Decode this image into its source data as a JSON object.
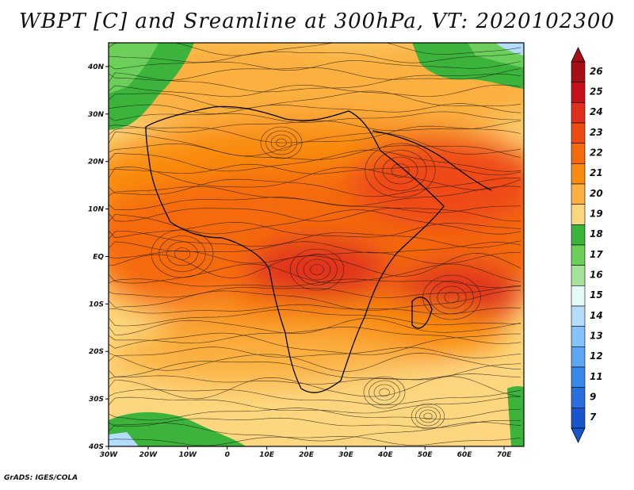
{
  "title": "WBPT [C] and Sreamline at 300hPa, VT: 2020102300",
  "credit": "GrADS: IGES/COLA",
  "map": {
    "lat_labels": [
      "40N",
      "30N",
      "20N",
      "10N",
      "EQ",
      "10S",
      "20S",
      "30S",
      "40S"
    ],
    "lat_values": [
      40,
      30,
      20,
      10,
      0,
      -10,
      -20,
      -30,
      -40
    ],
    "lon_labels": [
      "30W",
      "20W",
      "10W",
      "0",
      "10E",
      "20E",
      "30E",
      "40E",
      "50E",
      "60E",
      "70E"
    ],
    "lon_values": [
      -30,
      -20,
      -10,
      0,
      10,
      20,
      30,
      40,
      50,
      60,
      70
    ],
    "lon_range": [
      -30,
      75
    ],
    "lat_range": [
      -40,
      45
    ]
  },
  "colorbar": {
    "levels": [
      "26",
      "25",
      "24",
      "23",
      "22",
      "21",
      "20",
      "19",
      "18",
      "17",
      "16",
      "15",
      "14",
      "13",
      "12",
      "11",
      "9",
      "7"
    ],
    "colors": [
      "#a50f15",
      "#c8101a",
      "#e0301e",
      "#ee4a14",
      "#f56a0a",
      "#f98c10",
      "#fbb040",
      "#fcd77f",
      "#3cb43c",
      "#6ccf5a",
      "#a3e39a",
      "#e6fbf7",
      "#b4dcfb",
      "#86c1f7",
      "#5da6f2",
      "#3b8aeb",
      "#2a6fe0",
      "#1a55d0"
    ]
  }
}
